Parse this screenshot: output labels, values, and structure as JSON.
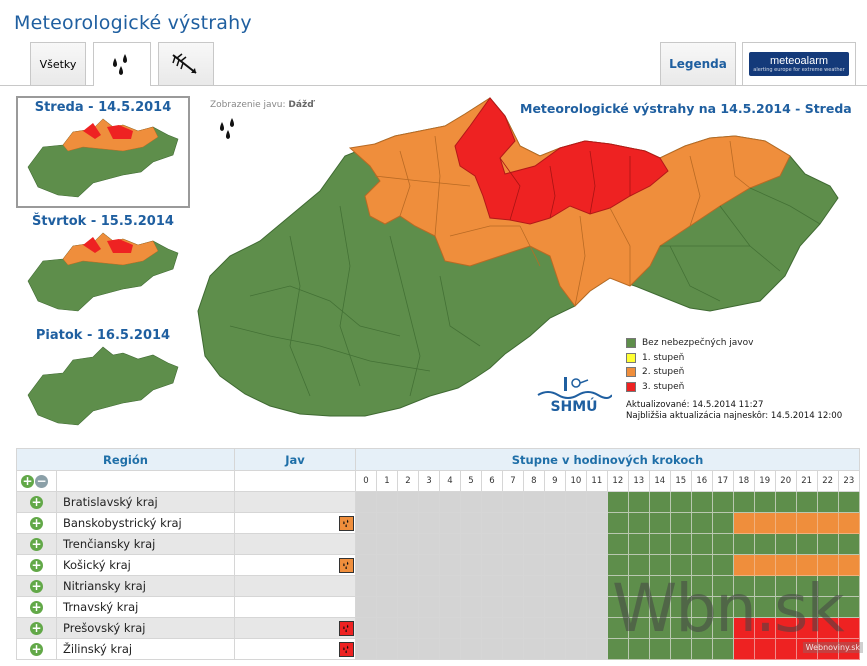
{
  "page": {
    "title": "Meteorologické výstrahy"
  },
  "tabs": {
    "all": "Všetky",
    "rain_icon": "rain-drops-icon",
    "wind_icon": "wind-icon",
    "legend": "Legenda",
    "meteoalarm_title": "meteoalarm",
    "meteoalarm_tagline": "alerting europe for extreme weather"
  },
  "days": [
    {
      "label": "Streda - 14.5.2014",
      "selected": true
    },
    {
      "label": "Štvrtok - 15.5.2014",
      "selected": false
    },
    {
      "label": "Piatok - 16.5.2014",
      "selected": false
    }
  ],
  "display": {
    "label": "Zobrazenie javu:",
    "phenomenon": "Dážď"
  },
  "map": {
    "title": "Meteorologické výstrahy na 14.5.2014 - Streda"
  },
  "legend": [
    {
      "label": "Bez nebezpečných javov",
      "color": "#5e8e4b"
    },
    {
      "label": "1. stupeň",
      "color": "#ffff33"
    },
    {
      "label": "2. stupeň",
      "color": "#ef8e3c"
    },
    {
      "label": "3. stupeň",
      "color": "#ee2222"
    }
  ],
  "update": {
    "updated": "Aktualizované: 14.5.2014 11:27",
    "next": "Najbližšia aktualizácia najneskôr: 14.5.2014 12:00"
  },
  "logo": {
    "text": "SHMÚ"
  },
  "table": {
    "col_region": "Región",
    "col_jav": "Jav",
    "col_hours": "Stupne v hodinových krokoch",
    "hours": [
      "0",
      "1",
      "2",
      "3",
      "4",
      "5",
      "6",
      "7",
      "8",
      "9",
      "10",
      "11",
      "12",
      "13",
      "14",
      "15",
      "16",
      "17",
      "18",
      "19",
      "20",
      "21",
      "22",
      "23"
    ],
    "rows": [
      {
        "name": "Bratislavský kraj",
        "icon": "",
        "levels": "............gggggggggggg"
      },
      {
        "name": "Banskobystrický kraj",
        "icon": "orange",
        "levels": "............ggggggoooooo"
      },
      {
        "name": "Trenčiansky kraj",
        "icon": "",
        "levels": "............gggggggggggg"
      },
      {
        "name": "Košický kraj",
        "icon": "orange",
        "levels": "............ggggggoooooo"
      },
      {
        "name": "Nitriansky kraj",
        "icon": "",
        "levels": "............gggggggggggg"
      },
      {
        "name": "Trnavský kraj",
        "icon": "",
        "levels": "............gggggggggggg"
      },
      {
        "name": "Prešovský kraj",
        "icon": "red",
        "levels": "............ggggggrrrrrr"
      },
      {
        "name": "Žilinský kraj",
        "icon": "red",
        "levels": "............ggggggrrrrrr"
      }
    ]
  },
  "watermark": {
    "big": "Wbn.sk",
    "small": "Webnoviny.sk"
  },
  "colors": {
    "green": "#5e8e4b",
    "orange": "#ef8e3c",
    "red": "#ee2222",
    "title_blue": "#1f5fa0"
  }
}
